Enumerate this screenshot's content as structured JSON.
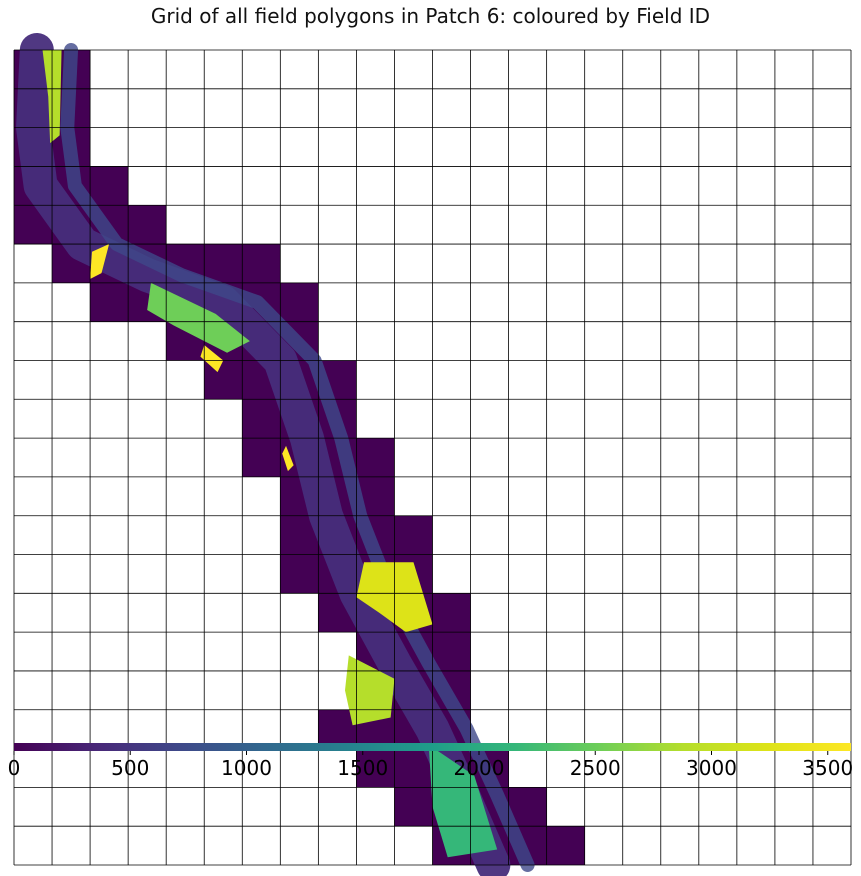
{
  "chart_data": {
    "type": "heatmap",
    "title": "Grid of all field polygons in Patch 6: coloured by Field ID",
    "colormap": "viridis",
    "colorbar": {
      "orientation": "horizontal",
      "range": [
        0,
        3600
      ],
      "tick_labels": [
        "0",
        "500",
        "1000",
        "1500",
        "2000",
        "2500",
        "3000",
        "3500"
      ],
      "tick_values": [
        0,
        500,
        1000,
        1500,
        2000,
        2500,
        3000,
        3500
      ]
    },
    "grid": {
      "rows": 21,
      "cols": 22
    },
    "background_color": "#440154",
    "river_color": "#472d7b",
    "occupied_cells": [
      [
        0,
        0
      ],
      [
        0,
        1
      ],
      [
        1,
        0
      ],
      [
        1,
        1
      ],
      [
        2,
        0
      ],
      [
        2,
        1
      ],
      [
        3,
        0
      ],
      [
        3,
        1
      ],
      [
        3,
        2
      ],
      [
        4,
        0
      ],
      [
        4,
        1
      ],
      [
        4,
        2
      ],
      [
        4,
        3
      ],
      [
        5,
        1
      ],
      [
        5,
        2
      ],
      [
        5,
        3
      ],
      [
        5,
        4
      ],
      [
        5,
        5
      ],
      [
        5,
        6
      ],
      [
        6,
        2
      ],
      [
        6,
        3
      ],
      [
        6,
        4
      ],
      [
        6,
        5
      ],
      [
        6,
        6
      ],
      [
        6,
        7
      ],
      [
        7,
        4
      ],
      [
        7,
        5
      ],
      [
        7,
        6
      ],
      [
        7,
        7
      ],
      [
        8,
        5
      ],
      [
        8,
        6
      ],
      [
        8,
        7
      ],
      [
        8,
        8
      ],
      [
        9,
        6
      ],
      [
        9,
        7
      ],
      [
        9,
        8
      ],
      [
        10,
        6
      ],
      [
        10,
        7
      ],
      [
        10,
        8
      ],
      [
        10,
        9
      ],
      [
        11,
        7
      ],
      [
        11,
        8
      ],
      [
        11,
        9
      ],
      [
        12,
        7
      ],
      [
        12,
        8
      ],
      [
        12,
        9
      ],
      [
        12,
        10
      ],
      [
        13,
        7
      ],
      [
        13,
        8
      ],
      [
        13,
        9
      ],
      [
        13,
        10
      ],
      [
        14,
        8
      ],
      [
        14,
        9
      ],
      [
        14,
        10
      ],
      [
        14,
        11
      ],
      [
        15,
        9
      ],
      [
        15,
        10
      ],
      [
        15,
        11
      ],
      [
        16,
        9
      ],
      [
        16,
        10
      ],
      [
        16,
        11
      ],
      [
        17,
        8
      ],
      [
        17,
        9
      ],
      [
        17,
        10
      ],
      [
        17,
        11
      ],
      [
        18,
        9
      ],
      [
        18,
        10
      ],
      [
        18,
        11
      ],
      [
        18,
        12
      ],
      [
        19,
        10
      ],
      [
        19,
        11
      ],
      [
        19,
        12
      ],
      [
        19,
        13
      ],
      [
        20,
        11
      ],
      [
        20,
        12
      ],
      [
        20,
        13
      ],
      [
        20,
        14
      ]
    ],
    "field_patches": [
      {
        "value": 2900,
        "region": "top-left strip"
      },
      {
        "value": 3500,
        "region": "small patch near row 5"
      },
      {
        "value": 2500,
        "region": "bank fields rows 6-8"
      },
      {
        "value": 3600,
        "region": "patch near row 7"
      },
      {
        "value": 3600,
        "region": "patch near row 11"
      },
      {
        "value": 3300,
        "region": "cluster rows 14-16"
      },
      {
        "value": 3000,
        "region": "fields rows 16-18"
      },
      {
        "value": 2200,
        "region": "fields rows 18-20"
      }
    ]
  }
}
